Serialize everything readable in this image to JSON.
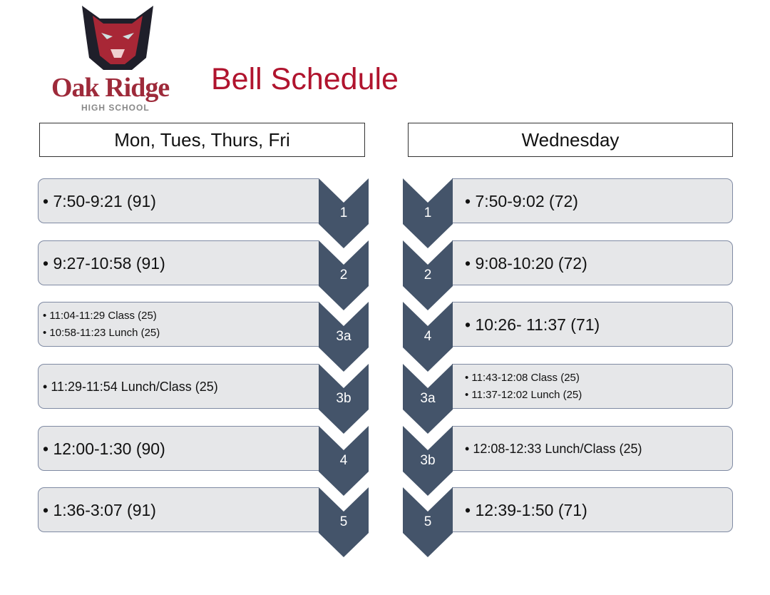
{
  "header": {
    "logo_name": "Oak Ridge",
    "logo_sub": "HIGH SCHOOL",
    "title": "Bell Schedule"
  },
  "colors": {
    "chevron": "#44546a",
    "box_fill": "#e6e7e9",
    "title": "#b0142e",
    "logo": "#9e2a3a"
  },
  "left": {
    "heading": "Mon, Tues, Thurs, Fri",
    "rows": [
      {
        "period": "1",
        "lines": [
          "7:50-9:21 (91)"
        ],
        "size": "big"
      },
      {
        "period": "2",
        "lines": [
          "9:27-10:58 (91)"
        ],
        "size": "big"
      },
      {
        "period": "3a",
        "lines": [
          "11:04-11:29 Class (25)",
          "10:58-11:23 Lunch (25)"
        ],
        "size": "small"
      },
      {
        "period": "3b",
        "lines": [
          "11:29-11:54 Lunch/Class (25)"
        ],
        "size": "mid"
      },
      {
        "period": "4",
        "lines": [
          "12:00-1:30 (90)"
        ],
        "size": "big"
      },
      {
        "period": "5",
        "lines": [
          "1:36-3:07 (91)"
        ],
        "size": "big"
      }
    ]
  },
  "right": {
    "heading": "Wednesday",
    "rows": [
      {
        "period": "1",
        "lines": [
          "7:50-9:02 (72)"
        ],
        "size": "big"
      },
      {
        "period": "2",
        "lines": [
          "9:08-10:20 (72)"
        ],
        "size": "big"
      },
      {
        "period": "4",
        "lines": [
          "10:26- 11:37 (71)"
        ],
        "size": "big"
      },
      {
        "period": "3a",
        "lines": [
          "11:43-12:08 Class (25)",
          "11:37-12:02 Lunch (25)"
        ],
        "size": "small"
      },
      {
        "period": "3b",
        "lines": [
          "12:08-12:33 Lunch/Class (25)"
        ],
        "size": "mid"
      },
      {
        "period": "5",
        "lines": [
          "12:39-1:50 (71)"
        ],
        "size": "big"
      }
    ]
  }
}
